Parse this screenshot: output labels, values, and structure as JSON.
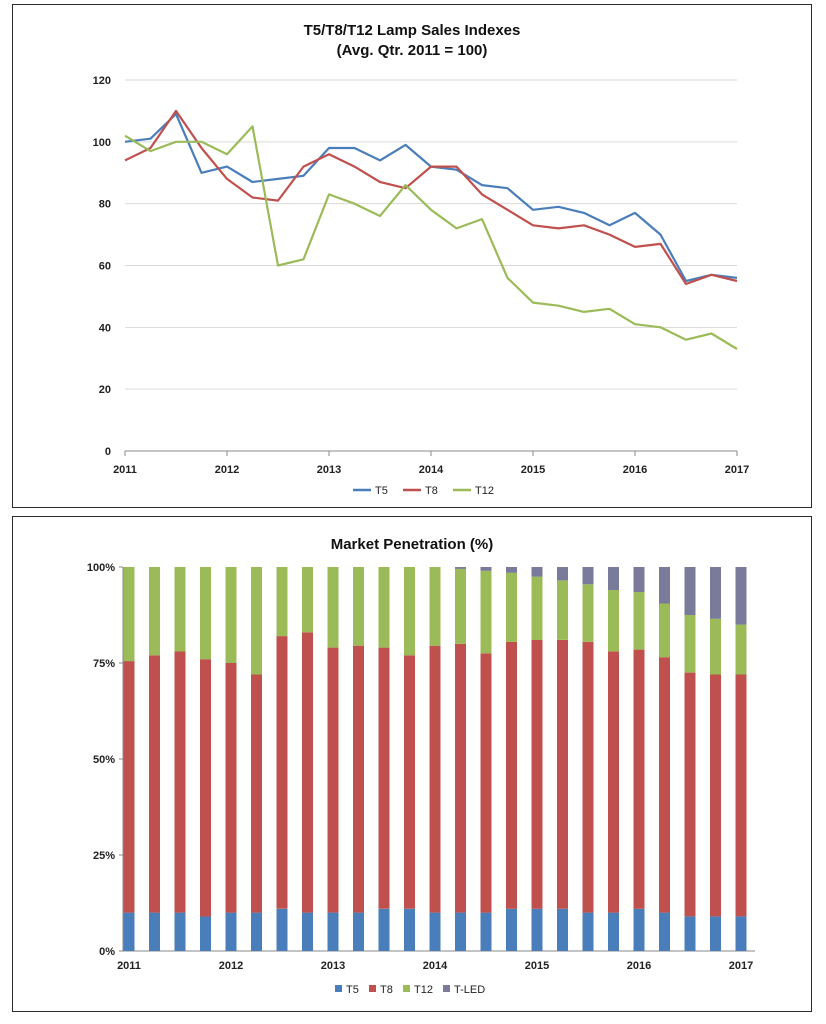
{
  "chart_data": [
    {
      "type": "line",
      "title": "T5/T8/T12 Lamp Sales Indexes",
      "subtitle": "(Avg. Qtr. 2011 = 100)",
      "xlabel": "",
      "ylabel": "",
      "ylim": [
        0,
        120
      ],
      "yticks": [
        "0",
        "20",
        "40",
        "60",
        "80",
        "100",
        "120"
      ],
      "xticks": [
        "2011",
        "2012",
        "2013",
        "2014",
        "2015",
        "2016",
        "2017"
      ],
      "grid": true,
      "legend": "bottom",
      "colors": {
        "T5": "#4a7ebb",
        "T8": "#c0504d",
        "T12": "#9bbb59"
      },
      "series": [
        {
          "name": "T5",
          "x": [
            2011,
            2011.25,
            2011.5,
            2011.75,
            2012,
            2012.25,
            2012.5,
            2012.75,
            2013,
            2013.25,
            2013.5,
            2013.75,
            2014,
            2014.25,
            2014.5,
            2014.75,
            2015,
            2015.25,
            2015.5,
            2015.75,
            2016,
            2016.25,
            2016.5,
            2016.75,
            2017
          ],
          "values": [
            100,
            101,
            109,
            90,
            92,
            87,
            88,
            89,
            98,
            98,
            94,
            99,
            92,
            91,
            86,
            85,
            78,
            79,
            77,
            73,
            77,
            70,
            55,
            57,
            56
          ]
        },
        {
          "name": "T8",
          "x": [
            2011,
            2011.25,
            2011.5,
            2011.75,
            2012,
            2012.25,
            2012.5,
            2012.75,
            2013,
            2013.25,
            2013.5,
            2013.75,
            2014,
            2014.25,
            2014.5,
            2014.75,
            2015,
            2015.25,
            2015.5,
            2015.75,
            2016,
            2016.25,
            2016.5,
            2016.75,
            2017
          ],
          "values": [
            94,
            98,
            110,
            98,
            88,
            82,
            81,
            92,
            96,
            92,
            87,
            85,
            92,
            92,
            83,
            78,
            73,
            72,
            73,
            70,
            66,
            67,
            54,
            57,
            55
          ]
        },
        {
          "name": "T12",
          "x": [
            2011,
            2011.25,
            2011.5,
            2011.75,
            2012,
            2012.25,
            2012.5,
            2012.75,
            2013,
            2013.25,
            2013.5,
            2013.75,
            2014,
            2014.25,
            2014.5,
            2014.75,
            2015,
            2015.25,
            2015.5,
            2015.75,
            2016,
            2016.25,
            2016.5,
            2016.75,
            2017
          ],
          "values": [
            102,
            97,
            100,
            100,
            96,
            105,
            60,
            62,
            83,
            80,
            76,
            86,
            78,
            72,
            75,
            56,
            48,
            47,
            45,
            46,
            41,
            40,
            36,
            38,
            33
          ]
        }
      ]
    },
    {
      "type": "bar",
      "stacked": true,
      "title": "Market Penetration (%)",
      "xlabel": "",
      "ylabel": "",
      "ylim": [
        0,
        100
      ],
      "yticks": [
        "0%",
        "25%",
        "50%",
        "75%",
        "100%"
      ],
      "xticks": [
        "2011",
        "2012",
        "2013",
        "2014",
        "2015",
        "2016",
        "2017"
      ],
      "grid": false,
      "legend": "bottom",
      "colors": {
        "T5": "#4a7ebb",
        "T8": "#c0504d",
        "T12": "#9bbb59",
        "T-LED": "#7a7a9a"
      },
      "x": [
        2011,
        2011.25,
        2011.5,
        2011.75,
        2012,
        2012.25,
        2012.5,
        2012.75,
        2013,
        2013.25,
        2013.5,
        2013.75,
        2014,
        2014.25,
        2014.5,
        2014.75,
        2015,
        2015.25,
        2015.5,
        2015.75,
        2016,
        2016.25,
        2016.5,
        2016.75,
        2017
      ],
      "series": [
        {
          "name": "T5",
          "values": [
            10,
            10,
            10,
            9,
            10,
            10,
            11,
            10,
            10,
            10,
            11,
            11,
            10,
            10,
            10,
            11,
            11,
            11,
            10,
            10,
            11,
            10,
            9,
            9,
            9
          ]
        },
        {
          "name": "T8",
          "values": [
            65.5,
            67,
            68,
            67,
            65,
            62,
            71,
            73,
            69,
            69.5,
            68,
            66,
            69.5,
            70,
            67.5,
            69.5,
            70,
            70,
            70.5,
            68,
            67.5,
            66.5,
            63.5,
            63,
            63
          ]
        },
        {
          "name": "T12",
          "values": [
            24.5,
            23,
            22,
            24,
            25,
            28,
            18,
            17,
            21,
            20.5,
            21,
            23,
            20.5,
            19.5,
            21.5,
            18,
            16.5,
            15.5,
            15,
            16,
            15,
            14,
            15,
            14.5,
            13
          ]
        },
        {
          "name": "T-LED",
          "values": [
            0,
            0,
            0,
            0,
            0,
            0,
            0,
            0,
            0,
            0,
            0,
            0,
            0,
            0.5,
            1,
            1.5,
            2.5,
            3.5,
            4.5,
            6,
            6.5,
            9.5,
            12.5,
            13.5,
            15
          ]
        }
      ]
    }
  ]
}
